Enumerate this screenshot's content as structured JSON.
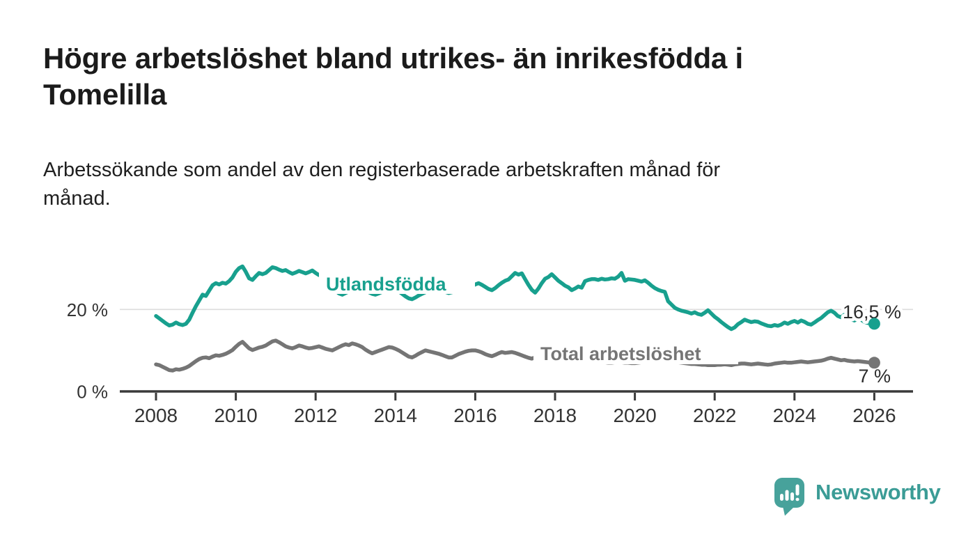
{
  "header": {
    "title": "Högre arbetslöshet bland utrikes- än inrikesfödda i Tomelilla",
    "title_lines": [
      "Högre arbetslöshet bland utrikes- än inrikesfödda i",
      "Tomelilla"
    ],
    "subtitle": "Arbetssökande som andel av den registerbaserade arbetskraften månad för månad.",
    "subtitle_lines": [
      "Arbetssökande som andel av den registerbaserade arbetskraften månad för",
      "månad."
    ]
  },
  "footer": {
    "brand": "Newsworthy"
  },
  "colors": {
    "foreign_born_line": "#18a08e",
    "total_line": "#757575",
    "axis": "#3a3a3a",
    "tick_label": "#333333",
    "gridline": "#dcdcdc",
    "end_label": "#2b2b2b",
    "brand_teal": "#47a29b",
    "background": "#ffffff"
  },
  "chart_data": {
    "type": "line",
    "title": "Högre arbetslöshet bland utrikes- än inrikesfödda i Tomelilla",
    "subtitle": "Arbetssökande som andel av den registerbaserade arbetskraften månad för månad.",
    "unit": "%",
    "frequency": "monthly",
    "start": "2008-01",
    "end": "2026-01",
    "x_axis": {
      "tick_years": [
        2008,
        2010,
        2012,
        2014,
        2016,
        2018,
        2020,
        2022,
        2024,
        2026
      ],
      "range_years": [
        2007.1,
        2027.0
      ]
    },
    "y_axis": {
      "ticks": [
        {
          "value": 0,
          "label": "0 %"
        },
        {
          "value": 20,
          "label": "20 %"
        }
      ],
      "gridline_values": [
        20
      ],
      "range": [
        0,
        33
      ]
    },
    "legend_position": "inline-labels",
    "series": [
      {
        "id": "utlandsfodda",
        "name": "Utlandsfödda",
        "color": "#18a08e",
        "end_label": "16,5 %",
        "end_value": 16.5,
        "values": [
          18.4,
          17.8,
          17.2,
          16.6,
          16.1,
          16.3,
          16.8,
          16.4,
          16.2,
          16.5,
          17.5,
          19.2,
          20.8,
          22.2,
          23.6,
          23.3,
          24.6,
          25.9,
          26.4,
          26.1,
          26.5,
          26.3,
          26.9,
          27.8,
          29.2,
          30.1,
          30.5,
          29.2,
          27.6,
          27.2,
          28.1,
          28.9,
          28.6,
          28.9,
          29.6,
          30.3,
          30.1,
          29.7,
          29.4,
          29.6,
          29.1,
          28.7,
          29.0,
          29.4,
          29.1,
          28.8,
          29.1,
          29.5,
          28.9,
          28.4,
          28.7,
          27.9,
          26.9,
          25.7,
          24.6,
          23.9,
          23.6,
          24.0,
          24.4,
          24.7,
          25.0,
          25.3,
          25.0,
          24.6,
          24.2,
          23.8,
          23.6,
          23.9,
          24.3,
          24.6,
          24.9,
          25.1,
          24.8,
          24.4,
          23.8,
          23.2,
          22.7,
          22.5,
          22.9,
          23.4,
          23.8,
          24.2,
          24.5,
          24.8,
          25.0,
          25.2,
          24.8,
          24.3,
          24.0,
          24.2,
          24.6,
          25.0,
          25.3,
          25.6,
          25.4,
          25.7,
          26.1,
          26.4,
          26.0,
          25.5,
          25.0,
          24.7,
          25.2,
          25.9,
          26.5,
          27.0,
          27.3,
          28.1,
          28.9,
          28.5,
          28.8,
          27.4,
          26.0,
          24.8,
          24.1,
          25.1,
          26.4,
          27.5,
          27.9,
          28.6,
          27.8,
          27.0,
          26.4,
          25.8,
          25.4,
          24.7,
          25.1,
          25.6,
          25.3,
          26.9,
          27.2,
          27.4,
          27.4,
          27.2,
          27.5,
          27.3,
          27.4,
          27.6,
          27.5,
          28.0,
          28.9,
          27.0,
          27.4,
          27.3,
          27.2,
          27.0,
          26.8,
          27.1,
          26.5,
          25.8,
          25.2,
          24.8,
          24.5,
          24.3,
          22.0,
          21.2,
          20.4,
          20.0,
          19.7,
          19.5,
          19.3,
          19.0,
          19.3,
          18.9,
          18.7,
          19.2,
          19.8,
          19.0,
          18.2,
          17.6,
          16.9,
          16.3,
          15.7,
          15.2,
          15.6,
          16.4,
          16.9,
          17.5,
          17.2,
          16.9,
          17.1,
          17.0,
          16.6,
          16.3,
          16.0,
          15.9,
          16.2,
          16.0,
          16.3,
          16.8,
          16.5,
          16.9,
          17.2,
          16.8,
          17.3,
          17.0,
          16.5,
          16.3,
          16.8,
          17.4,
          17.9,
          18.6,
          19.3,
          19.7,
          19.2,
          18.4,
          18.1,
          18.7,
          18.3,
          17.6,
          17.3,
          17.8,
          17.5,
          17.0,
          16.7,
          16.6,
          16.5
        ]
      },
      {
        "id": "total",
        "name": "Total arbetslöshet",
        "color": "#757575",
        "end_label": "7 %",
        "end_value": 7,
        "values": [
          6.6,
          6.4,
          6.0,
          5.6,
          5.2,
          5.1,
          5.4,
          5.3,
          5.5,
          5.8,
          6.2,
          6.8,
          7.4,
          7.9,
          8.2,
          8.3,
          8.1,
          8.5,
          8.8,
          8.7,
          8.9,
          9.2,
          9.6,
          10.1,
          10.9,
          11.6,
          12.1,
          11.3,
          10.5,
          10.1,
          10.4,
          10.7,
          10.9,
          11.2,
          11.7,
          12.2,
          12.4,
          12.0,
          11.5,
          11.0,
          10.7,
          10.5,
          10.8,
          11.2,
          11.0,
          10.7,
          10.5,
          10.6,
          10.8,
          11.0,
          10.7,
          10.4,
          10.2,
          10.0,
          10.4,
          10.8,
          11.2,
          11.5,
          11.3,
          11.7,
          11.5,
          11.2,
          10.8,
          10.2,
          9.7,
          9.3,
          9.6,
          9.9,
          10.2,
          10.5,
          10.8,
          10.7,
          10.4,
          10.0,
          9.5,
          9.0,
          8.5,
          8.3,
          8.7,
          9.2,
          9.6,
          10.0,
          9.8,
          9.6,
          9.4,
          9.2,
          8.9,
          8.6,
          8.3,
          8.3,
          8.7,
          9.1,
          9.4,
          9.7,
          9.9,
          10.0,
          10.0,
          9.8,
          9.5,
          9.1,
          8.8,
          8.6,
          8.9,
          9.3,
          9.6,
          9.4,
          9.5,
          9.6,
          9.4,
          9.1,
          8.8,
          8.5,
          8.2,
          8.0,
          8.3,
          8.1,
          8.0,
          8.1,
          8.1,
          8.0,
          8.0,
          7.9,
          7.8,
          7.7,
          7.6,
          7.5,
          7.6,
          7.7,
          7.6,
          7.5,
          7.4,
          7.4,
          7.3,
          7.2,
          7.2,
          7.1,
          7.0,
          7.0,
          7.1,
          7.2,
          7.1,
          7.0,
          7.0,
          6.9,
          6.9,
          7.0,
          7.1,
          7.5,
          7.7,
          7.8,
          7.9,
          7.8,
          7.7,
          7.5,
          7.4,
          7.3,
          7.2,
          7.1,
          7.0,
          6.9,
          6.8,
          6.7,
          6.7,
          6.6,
          6.5,
          6.5,
          6.4,
          6.4,
          6.4,
          6.5,
          6.5,
          6.6,
          6.5,
          6.4,
          6.6,
          6.7,
          6.8,
          6.8,
          6.7,
          6.6,
          6.7,
          6.8,
          6.7,
          6.6,
          6.5,
          6.6,
          6.8,
          6.9,
          7.0,
          7.1,
          7.0,
          7.0,
          7.1,
          7.2,
          7.3,
          7.2,
          7.1,
          7.2,
          7.3,
          7.4,
          7.5,
          7.7,
          8.0,
          8.2,
          8.0,
          7.8,
          7.6,
          7.7,
          7.5,
          7.4,
          7.3,
          7.4,
          7.3,
          7.2,
          7.1,
          7.0,
          7.0
        ]
      }
    ]
  }
}
